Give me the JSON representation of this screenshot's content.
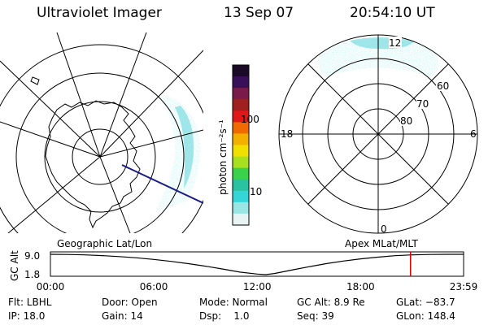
{
  "header": {
    "instrument": "Ultraviolet Imager",
    "date": "13 Sep 07",
    "time": "20:54:10 UT"
  },
  "colorbar": {
    "units_label": "photon cm⁻²s⁻¹",
    "tick_labels": [
      "100",
      "10"
    ],
    "colors": [
      "#1a0a28",
      "#3a0f5a",
      "#7a1a4a",
      "#a02020",
      "#e01818",
      "#f06a00",
      "#f3b000",
      "#f0e000",
      "#a8e020",
      "#3ad24a",
      "#2ac2a0",
      "#35d6d8",
      "#9ae6e6",
      "#e8f4f4"
    ]
  },
  "left_map": {
    "caption": "Geographic Lat/Lon",
    "aurora_color": "#5fd6d6"
  },
  "right_map": {
    "caption": "Apex MLat/MLT",
    "mlt_labels": [
      "12",
      "18",
      "6",
      "0"
    ],
    "mlat_labels": [
      "60",
      "70",
      "80"
    ],
    "aurora_color": "#5fd6d6"
  },
  "chart_data": {
    "type": "line",
    "ylabel": "GC Alt",
    "ytick_labels": [
      "9.0",
      "1.8"
    ],
    "ylim": [
      1.8,
      9.0
    ],
    "xtick_labels": [
      "00:00",
      "06:00",
      "12:00",
      "18:00",
      "23:59"
    ],
    "series": [
      {
        "x": [
          0,
          1,
          2,
          3,
          4,
          5,
          6,
          7,
          8,
          9,
          10,
          11,
          12,
          12.5,
          13,
          14,
          15,
          16,
          17,
          18,
          19,
          20,
          21,
          22,
          23,
          23.98
        ],
        "values": [
          9.0,
          8.95,
          8.8,
          8.55,
          8.2,
          7.75,
          7.2,
          6.5,
          5.7,
          4.8,
          3.8,
          2.7,
          2.0,
          1.8,
          2.2,
          3.4,
          4.6,
          5.7,
          6.6,
          7.4,
          8.0,
          8.5,
          8.8,
          8.95,
          9.0,
          9.0
        ]
      }
    ],
    "current_time_marker": 20.9,
    "marker_color": "#e00000"
  },
  "footer": {
    "row1": [
      "Flt: LBHL",
      "Door: Open",
      "Mode: Normal",
      "GC Alt: 8.9 Re",
      "GLat: −83.7"
    ],
    "row2": [
      "IP: 18.0",
      "Gain: 14",
      "Dsp:    1.0",
      "Seq: 39",
      "GLon: 148.4"
    ]
  }
}
